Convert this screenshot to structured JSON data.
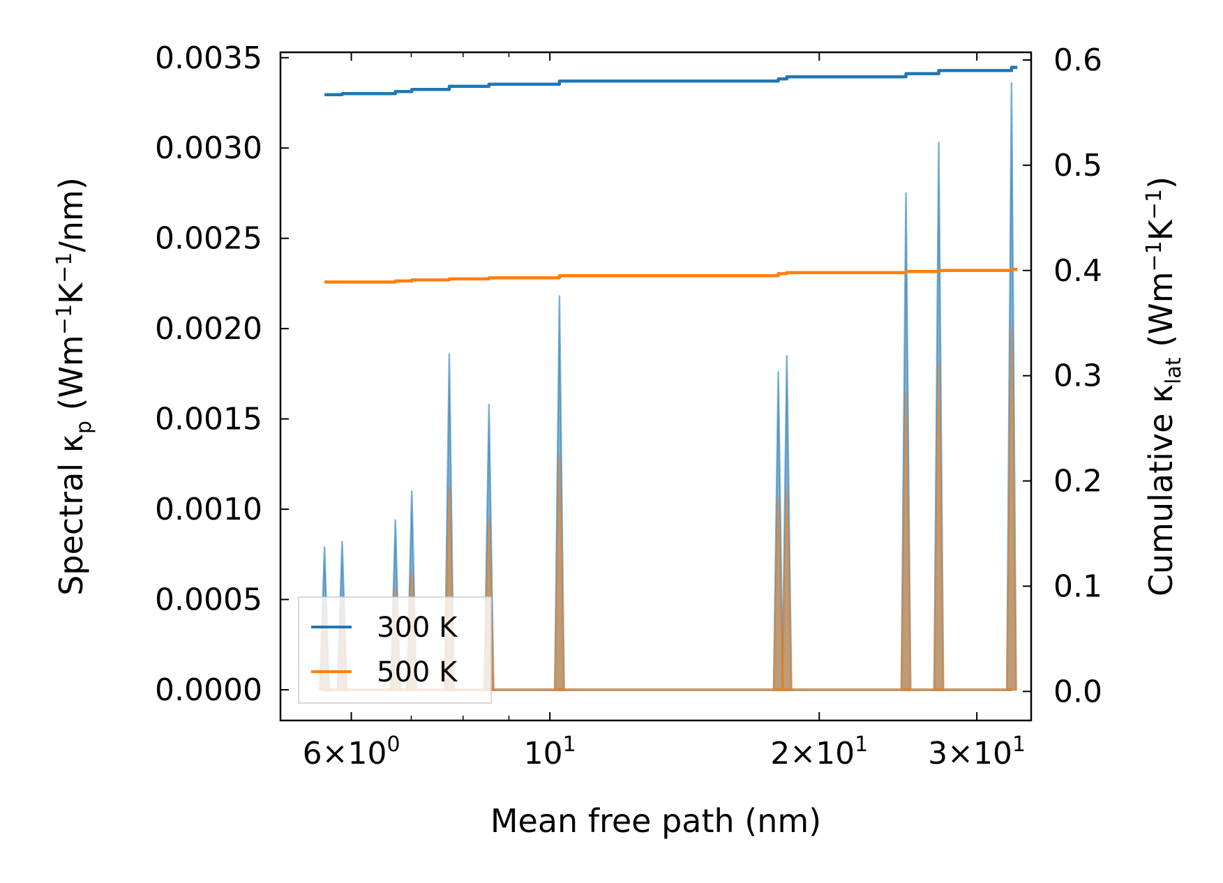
{
  "chart_data": {
    "type": "line",
    "xscale": "log",
    "xlabel": "Mean free path (nm)",
    "ylabel_left": "Spectral κ_p (Wm⁻¹K⁻¹/nm)",
    "ylabel_right": "Cumulative κ_lat (Wm⁻¹K⁻¹)",
    "xlim": [
      5.0,
      34.5
    ],
    "ylim_left": [
      -0.00017,
      0.00353
    ],
    "ylim_right": [
      -0.0276,
      0.6073
    ],
    "x_major_ticks": [
      {
        "value": 6,
        "mantissa": "6",
        "exponent": "0"
      },
      {
        "value": 10,
        "mantissa": "",
        "exponent": "1"
      },
      {
        "value": 20,
        "mantissa": "2",
        "exponent": "1"
      },
      {
        "value": 30,
        "mantissa": "3",
        "exponent": "1"
      }
    ],
    "x_minor_ticks": [
      7,
      8,
      9
    ],
    "y_left_ticks": [
      "0.0000",
      "0.0005",
      "0.0010",
      "0.0015",
      "0.0020",
      "0.0025",
      "0.0030",
      "0.0035"
    ],
    "y_right_ticks": [
      "0.0",
      "0.1",
      "0.2",
      "0.3",
      "0.4",
      "0.5",
      "0.6"
    ],
    "series": [
      {
        "name": "300 K",
        "color": "#1f77b4",
        "spectral_peaks": [
          [
            5.6,
            0.00079
          ],
          [
            5.86,
            0.00082
          ],
          [
            6.72,
            0.00094
          ],
          [
            7.01,
            0.0011
          ],
          [
            7.72,
            0.00186
          ],
          [
            8.55,
            0.00158
          ],
          [
            10.25,
            0.00218
          ],
          [
            18.0,
            0.00176
          ],
          [
            18.4,
            0.00185
          ],
          [
            25.0,
            0.00275
          ],
          [
            27.2,
            0.00303
          ],
          [
            32.8,
            0.00336
          ]
        ],
        "cumulative": {
          "x": [
            5.6,
            5.86,
            6.72,
            7.01,
            7.72,
            8.55,
            10.25,
            18.0,
            18.4,
            25.0,
            27.2,
            32.8,
            33.3
          ],
          "y": [
            0.567,
            0.568,
            0.57,
            0.572,
            0.575,
            0.577,
            0.58,
            0.582,
            0.584,
            0.587,
            0.59,
            0.593,
            0.593
          ]
        }
      },
      {
        "name": "500 K",
        "color": "#ff7f0e",
        "spectral_peaks": [
          [
            5.6,
            0.00048
          ],
          [
            5.86,
            0.0005
          ],
          [
            6.72,
            0.00057
          ],
          [
            7.01,
            0.00066
          ],
          [
            7.72,
            0.00112
          ],
          [
            8.55,
            0.00095
          ],
          [
            10.25,
            0.0013
          ],
          [
            18.0,
            0.00106
          ],
          [
            18.4,
            0.00111
          ],
          [
            25.0,
            0.00165
          ],
          [
            27.2,
            0.00181
          ],
          [
            32.8,
            0.00201
          ]
        ],
        "cumulative": {
          "x": [
            5.6,
            5.86,
            6.72,
            7.01,
            7.72,
            8.55,
            10.25,
            18.0,
            18.4,
            25.0,
            27.2,
            32.8,
            33.3
          ],
          "y": [
            0.389,
            0.389,
            0.39,
            0.391,
            0.392,
            0.393,
            0.395,
            0.397,
            0.398,
            0.399,
            0.4,
            0.401,
            0.401
          ]
        }
      }
    ],
    "legend": {
      "position": "lower-left",
      "entries": [
        "300 K",
        "500 K"
      ]
    }
  }
}
